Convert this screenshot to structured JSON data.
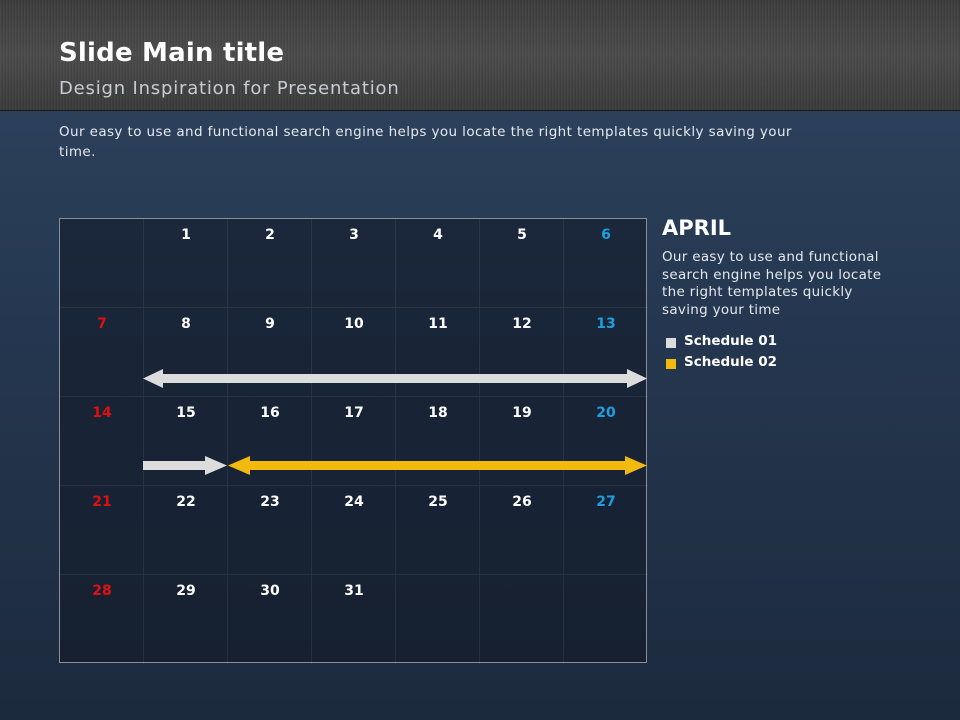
{
  "slide": {
    "title": "Slide Main title",
    "subtitle": "Design Inspiration for Presentation",
    "intro": "Our easy to use and functional search engine helps you locate the right templates quickly saving your time."
  },
  "calendar": {
    "weeks": [
      [
        "",
        "1",
        "2",
        "3",
        "4",
        "5",
        "6"
      ],
      [
        "7",
        "8",
        "9",
        "10",
        "11",
        "12",
        "13"
      ],
      [
        "14",
        "15",
        "16",
        "17",
        "18",
        "19",
        "20"
      ],
      [
        "21",
        "22",
        "23",
        "24",
        "25",
        "26",
        "27"
      ],
      [
        "28",
        "29",
        "30",
        "31",
        "",
        "",
        ""
      ]
    ],
    "colors": {
      "sunday": "#e01010",
      "saturday": "#1e9fe0",
      "weekday": "#ffffff"
    }
  },
  "schedules": [
    {
      "name": "Schedule 01",
      "color": "#dcdcdc"
    },
    {
      "name": "Schedule 02",
      "color": "#f2b90f"
    }
  ],
  "sidebar": {
    "month": "APRIL",
    "description": "Our easy to use and functional search engine helps you locate the right templates quickly saving your time"
  }
}
